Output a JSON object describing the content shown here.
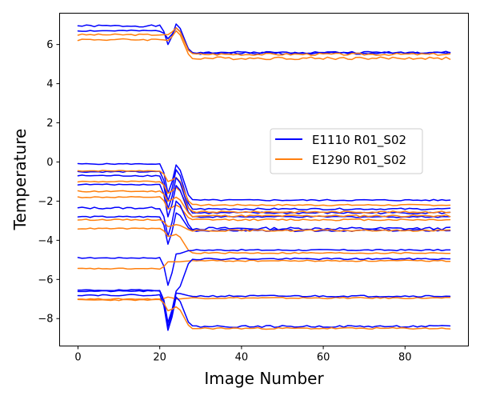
{
  "chart_data": {
    "type": "line",
    "title": "",
    "xlabel": "Image Number",
    "ylabel": "Temperature",
    "xlim": [
      -4.5,
      95.5
    ],
    "ylim": [
      -9.4,
      7.6
    ],
    "xticks": [
      0,
      20,
      40,
      60,
      80
    ],
    "yticks": [
      -8,
      -6,
      -4,
      -2,
      0,
      2,
      4,
      6
    ],
    "grid": false,
    "legend_position": "center-right",
    "n_points": 92,
    "colors": {
      "E1110 R01_S02": "#0000ff",
      "E1290 R01_S02": "#ff7f0e"
    },
    "legend": [
      {
        "label": "E1110 R01_S02",
        "color": "#0000ff"
      },
      {
        "label": "E1290 R01_S02",
        "color": "#ff7f0e"
      }
    ],
    "series": [
      {
        "name": "E1110 R01_S02",
        "color": "#0000ff",
        "pre": 6.95,
        "dip": 6.0,
        "peak": 7.05,
        "post": 5.55,
        "wiggle": 0.1
      },
      {
        "name": "E1110 R01_S02",
        "color": "#0000ff",
        "pre": 6.7,
        "dip": 6.3,
        "peak": 6.85,
        "post": 5.6,
        "wiggle": 0.07
      },
      {
        "name": "E1290 R01_S02",
        "color": "#ff7f0e",
        "pre": 6.5,
        "dip": 6.5,
        "peak": 6.85,
        "post": 5.5,
        "wiggle": 0.08
      },
      {
        "name": "E1290 R01_S02",
        "color": "#ff7f0e",
        "pre": 6.25,
        "dip": 6.2,
        "peak": 6.7,
        "post": 5.3,
        "wiggle": 0.1
      },
      {
        "name": "E1110 R01_S02",
        "color": "#0000ff",
        "pre": -0.1,
        "dip": -1.6,
        "peak": -0.15,
        "post": -1.95,
        "wiggle": 0.05
      },
      {
        "name": "E1110 R01_S02",
        "color": "#0000ff",
        "pre": -0.5,
        "dip": -2.0,
        "peak": -0.4,
        "post": -2.4,
        "wiggle": 0.06
      },
      {
        "name": "E1290 R01_S02",
        "color": "#ff7f0e",
        "pre": -0.45,
        "dip": -1.0,
        "peak": -0.8,
        "post": -2.2,
        "wiggle": 0.05
      },
      {
        "name": "E1110 R01_S02",
        "color": "#0000ff",
        "pre": -0.7,
        "dip": -2.4,
        "peak": -0.8,
        "post": -2.6,
        "wiggle": 0.07
      },
      {
        "name": "E1290 R01_S02",
        "color": "#ff7f0e",
        "pre": -1.0,
        "dip": -1.6,
        "peak": -1.3,
        "post": -2.55,
        "wiggle": 0.06
      },
      {
        "name": "E1110 R01_S02",
        "color": "#0000ff",
        "pre": -1.15,
        "dip": -2.8,
        "peak": -1.2,
        "post": -2.8,
        "wiggle": 0.05
      },
      {
        "name": "E1290 R01_S02",
        "color": "#ff7f0e",
        "pre": -1.5,
        "dip": -2.0,
        "peak": -1.8,
        "post": -2.75,
        "wiggle": 0.07
      },
      {
        "name": "E1290 R01_S02",
        "color": "#ff7f0e",
        "pre": -1.8,
        "dip": -2.4,
        "peak": -2.2,
        "post": -2.95,
        "wiggle": 0.06
      },
      {
        "name": "E1110 R01_S02",
        "color": "#0000ff",
        "pre": -2.35,
        "dip": -3.8,
        "peak": -2.0,
        "post": -3.4,
        "wiggle": 0.1
      },
      {
        "name": "E1110 R01_S02",
        "color": "#0000ff",
        "pre": -2.8,
        "dip": -4.2,
        "peak": -2.6,
        "post": -3.5,
        "wiggle": 0.07
      },
      {
        "name": "E1290 R01_S02",
        "color": "#ff7f0e",
        "pre": -2.95,
        "dip": -3.3,
        "peak": -3.2,
        "post": -3.5,
        "wiggle": 0.06
      },
      {
        "name": "E1290 R01_S02",
        "color": "#ff7f0e",
        "pre": -3.4,
        "dip": -3.8,
        "peak": -3.7,
        "post": -4.65,
        "wiggle": 0.05
      },
      {
        "name": "E1110 R01_S02",
        "color": "#0000ff",
        "pre": -4.9,
        "dip": -6.3,
        "peak": -4.7,
        "post": -4.5,
        "wiggle": 0.05
      },
      {
        "name": "E1290 R01_S02",
        "color": "#ff7f0e",
        "pre": -5.45,
        "dip": -5.1,
        "peak": -5.1,
        "post": -5.05,
        "wiggle": 0.05
      },
      {
        "name": "E1110 R01_S02",
        "color": "#0000ff",
        "pre": -6.55,
        "dip": -8.2,
        "peak": -6.6,
        "post": -4.95,
        "wiggle": 0.06
      },
      {
        "name": "E1290 R01_S02",
        "color": "#ff7f0e",
        "pre": -7.0,
        "dip": -6.9,
        "peak": -7.0,
        "post": -6.95,
        "wiggle": 0.05
      },
      {
        "name": "E1110 R01_S02",
        "color": "#0000ff",
        "pre": -6.6,
        "dip": -8.4,
        "peak": -6.7,
        "post": -6.85,
        "wiggle": 0.06
      },
      {
        "name": "E1110 R01_S02",
        "color": "#0000ff",
        "pre": -6.8,
        "dip": -8.6,
        "peak": -6.9,
        "post": -8.4,
        "wiggle": 0.07
      },
      {
        "name": "E1290 R01_S02",
        "color": "#ff7f0e",
        "pre": -7.05,
        "dip": -7.6,
        "peak": -7.4,
        "post": -8.5,
        "wiggle": 0.06
      }
    ]
  }
}
